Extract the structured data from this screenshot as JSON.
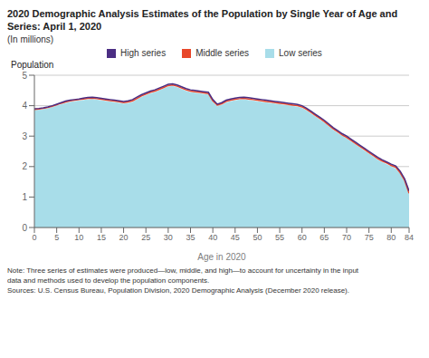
{
  "chart_data": {
    "type": "line",
    "title": "2020 Demographic Analysis Estimates of the Population by Single Year of Age and Series: April 1, 2020",
    "subtitle": "(In millions)",
    "x_label": "Age in 2020",
    "y_label": "Population",
    "annotations": [
      "Note: Three series of estimates were produced—low, middle, and high—to account for uncertainty in the input",
      "data and methods used to develop the population components.",
      "Sources: U.S. Census Bureau, Population Division, 2020 Demographic Analysis (December 2020 release)."
    ],
    "legend": "top",
    "grid": true,
    "xlim": [
      0,
      84
    ],
    "xticks": [
      0,
      5,
      10,
      15,
      20,
      25,
      30,
      35,
      40,
      45,
      50,
      55,
      60,
      65,
      70,
      75,
      80,
      84
    ],
    "ylim": [
      0,
      5
    ],
    "yticks": [
      0,
      1,
      2,
      3,
      4,
      5
    ],
    "x": [
      0,
      1,
      2,
      3,
      4,
      5,
      6,
      7,
      8,
      9,
      10,
      11,
      12,
      13,
      14,
      15,
      16,
      17,
      18,
      19,
      20,
      21,
      22,
      23,
      24,
      25,
      26,
      27,
      28,
      29,
      30,
      31,
      32,
      33,
      34,
      35,
      36,
      37,
      38,
      39,
      40,
      41,
      42,
      43,
      44,
      45,
      46,
      47,
      48,
      49,
      50,
      51,
      52,
      53,
      54,
      55,
      56,
      57,
      58,
      59,
      60,
      61,
      62,
      63,
      64,
      65,
      66,
      67,
      68,
      69,
      70,
      71,
      72,
      73,
      74,
      75,
      76,
      77,
      78,
      79,
      80,
      81,
      82,
      83,
      84
    ],
    "series": [
      {
        "name": "High series",
        "color": "#4b2e83",
        "values": [
          3.9,
          3.91,
          3.93,
          3.96,
          4.0,
          4.05,
          4.1,
          4.15,
          4.18,
          4.2,
          4.22,
          4.25,
          4.27,
          4.28,
          4.26,
          4.24,
          4.22,
          4.2,
          4.18,
          4.16,
          4.14,
          4.16,
          4.2,
          4.28,
          4.36,
          4.42,
          4.48,
          4.52,
          4.58,
          4.64,
          4.7,
          4.72,
          4.68,
          4.62,
          4.56,
          4.52,
          4.5,
          4.48,
          4.46,
          4.44,
          4.2,
          4.05,
          4.1,
          4.18,
          4.22,
          4.25,
          4.27,
          4.28,
          4.26,
          4.24,
          4.22,
          4.2,
          4.18,
          4.16,
          4.14,
          4.12,
          4.1,
          4.08,
          4.06,
          4.04,
          4.0,
          3.92,
          3.82,
          3.72,
          3.62,
          3.52,
          3.4,
          3.28,
          3.18,
          3.08,
          3.0,
          2.9,
          2.8,
          2.7,
          2.6,
          2.5,
          2.4,
          2.3,
          2.22,
          2.15,
          2.08,
          2.02,
          1.85,
          1.6,
          1.2
        ]
      },
      {
        "name": "Middle series",
        "color": "#e8472a",
        "values": [
          3.88,
          3.89,
          3.91,
          3.94,
          3.98,
          4.03,
          4.08,
          4.12,
          4.16,
          4.18,
          4.2,
          4.22,
          4.24,
          4.25,
          4.23,
          4.21,
          4.19,
          4.17,
          4.15,
          4.13,
          4.1,
          4.12,
          4.16,
          4.24,
          4.32,
          4.38,
          4.44,
          4.48,
          4.54,
          4.6,
          4.66,
          4.68,
          4.64,
          4.58,
          4.52,
          4.48,
          4.46,
          4.44,
          4.42,
          4.4,
          4.16,
          4.02,
          4.06,
          4.14,
          4.18,
          4.21,
          4.23,
          4.24,
          4.22,
          4.2,
          4.18,
          4.16,
          4.14,
          4.12,
          4.1,
          4.08,
          4.06,
          4.04,
          4.02,
          4.0,
          3.96,
          3.88,
          3.78,
          3.68,
          3.58,
          3.48,
          3.36,
          3.24,
          3.14,
          3.04,
          2.96,
          2.86,
          2.76,
          2.66,
          2.56,
          2.46,
          2.36,
          2.26,
          2.18,
          2.12,
          2.04,
          1.98,
          1.8,
          1.55,
          1.12
        ]
      },
      {
        "name": "Low series",
        "color": "#a8dde9",
        "type": "area",
        "values": [
          3.84,
          3.85,
          3.87,
          3.9,
          3.94,
          3.98,
          4.03,
          4.07,
          4.11,
          4.13,
          4.15,
          4.17,
          4.19,
          4.2,
          4.18,
          4.16,
          4.14,
          4.12,
          4.1,
          4.08,
          4.05,
          4.07,
          4.11,
          4.19,
          4.27,
          4.33,
          4.39,
          4.43,
          4.49,
          4.55,
          4.61,
          4.63,
          4.59,
          4.53,
          4.47,
          4.43,
          4.41,
          4.39,
          4.37,
          4.35,
          4.11,
          3.96,
          4.01,
          4.09,
          4.13,
          4.16,
          4.18,
          4.19,
          4.17,
          4.15,
          4.13,
          4.11,
          4.09,
          4.07,
          4.05,
          4.03,
          4.01,
          3.99,
          3.97,
          3.95,
          3.91,
          3.83,
          3.73,
          3.63,
          3.53,
          3.43,
          3.31,
          3.19,
          3.09,
          2.99,
          2.91,
          2.81,
          2.71,
          2.61,
          2.51,
          2.41,
          2.31,
          2.21,
          2.13,
          2.06,
          1.99,
          1.92,
          1.75,
          1.5,
          1.06
        ]
      }
    ]
  }
}
